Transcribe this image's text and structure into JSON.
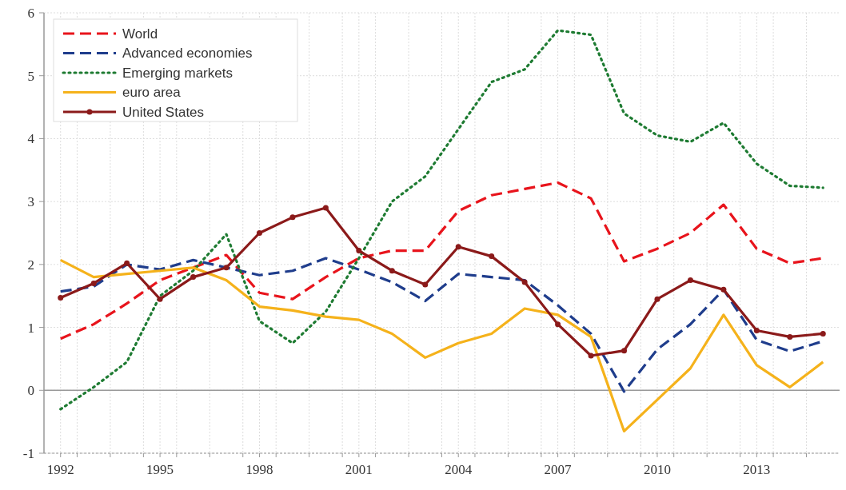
{
  "chart_data": {
    "type": "line",
    "x": [
      1992,
      1993,
      1994,
      1995,
      1996,
      1997,
      1998,
      1999,
      2000,
      2001,
      2002,
      2003,
      2004,
      2005,
      2006,
      2007,
      2008,
      2009,
      2010,
      2011,
      2012,
      2013,
      2014,
      2015
    ],
    "xlim": [
      1991.5,
      2015.5
    ],
    "xticks": [
      1992,
      {
        "value": 1992.5,
        "label": null
      },
      {
        "value": 1993.5,
        "label": null
      },
      {
        "value": 1994.5,
        "label": null
      },
      1995,
      {
        "value": 1995.5,
        "label": null
      },
      {
        "value": 1996.5,
        "label": null
      },
      {
        "value": 1997.5,
        "label": null
      },
      1998,
      {
        "value": 1998.5,
        "label": null
      },
      {
        "value": 1999.5,
        "label": null
      },
      {
        "value": 2000.5,
        "label": null
      },
      2001,
      {
        "value": 2001.5,
        "label": null
      },
      {
        "value": 2002.5,
        "label": null
      },
      {
        "value": 2003.5,
        "label": null
      },
      2004,
      {
        "value": 2004.5,
        "label": null
      },
      {
        "value": 2005.5,
        "label": null
      },
      {
        "value": 2006.5,
        "label": null
      },
      2007,
      {
        "value": 2007.5,
        "label": null
      },
      {
        "value": 2008.5,
        "label": null
      },
      {
        "value": 2009.5,
        "label": null
      },
      2010,
      {
        "value": 2010.5,
        "label": null
      },
      {
        "value": 2011.5,
        "label": null
      },
      {
        "value": 2012.5,
        "label": null
      },
      2013,
      {
        "value": 2013.5,
        "label": null
      },
      {
        "value": 2014.5,
        "label": null
      }
    ],
    "ylim": [
      -1,
      6
    ],
    "yticks": [
      -1,
      0,
      1,
      2,
      3,
      4,
      5,
      6
    ],
    "grid": true,
    "legend": "top left",
    "ref_lines": [
      {
        "axis": "y",
        "value": 0,
        "color": "#999999",
        "line_style": "solid"
      }
    ],
    "series": [
      {
        "name": "World",
        "color": "#e8141c",
        "line_style": "dashed",
        "marker": "none",
        "values": [
          0.82,
          1.05,
          1.38,
          1.75,
          1.95,
          2.15,
          1.55,
          1.45,
          1.8,
          2.1,
          2.22,
          2.22,
          2.85,
          3.1,
          3.2,
          3.3,
          3.05,
          2.05,
          2.25,
          2.5,
          2.95,
          2.25,
          2.02,
          2.1
        ]
      },
      {
        "name": "Advanced economies",
        "color": "#1f3d8c",
        "line_style": "dashed",
        "marker": "none",
        "values": [
          1.57,
          1.65,
          2.0,
          1.92,
          2.07,
          1.95,
          1.83,
          1.9,
          2.1,
          1.92,
          1.72,
          1.42,
          1.85,
          1.8,
          1.75,
          1.35,
          0.9,
          -0.02,
          0.65,
          1.05,
          1.6,
          0.8,
          0.62,
          0.78
        ]
      },
      {
        "name": "Emerging markets",
        "color": "#1e7b32",
        "line_style": "dotted",
        "marker": "none",
        "values": [
          -0.3,
          0.05,
          0.45,
          1.5,
          1.9,
          2.48,
          1.1,
          0.75,
          1.25,
          2.1,
          3.0,
          3.4,
          4.15,
          4.9,
          5.1,
          5.72,
          5.65,
          4.4,
          4.05,
          3.95,
          4.25,
          3.6,
          3.25,
          3.22
        ]
      },
      {
        "name": "euro area",
        "color": "#f5b21b",
        "line_style": "solid",
        "marker": "none",
        "values": [
          2.07,
          1.8,
          1.85,
          1.9,
          1.95,
          1.75,
          1.33,
          1.27,
          1.17,
          1.12,
          0.9,
          0.52,
          0.75,
          0.9,
          1.3,
          1.2,
          0.85,
          -0.65,
          -0.15,
          0.35,
          1.2,
          0.4,
          0.05,
          0.45
        ]
      },
      {
        "name": "United States",
        "color": "#8b1a1a",
        "line_style": "solid",
        "marker": "circle",
        "values": [
          1.47,
          1.7,
          2.02,
          1.45,
          1.8,
          1.95,
          2.5,
          2.75,
          2.9,
          2.22,
          1.9,
          1.68,
          2.28,
          2.13,
          1.72,
          1.05,
          0.55,
          0.63,
          1.45,
          1.75,
          1.6,
          0.95,
          0.85,
          0.9
        ]
      }
    ]
  }
}
